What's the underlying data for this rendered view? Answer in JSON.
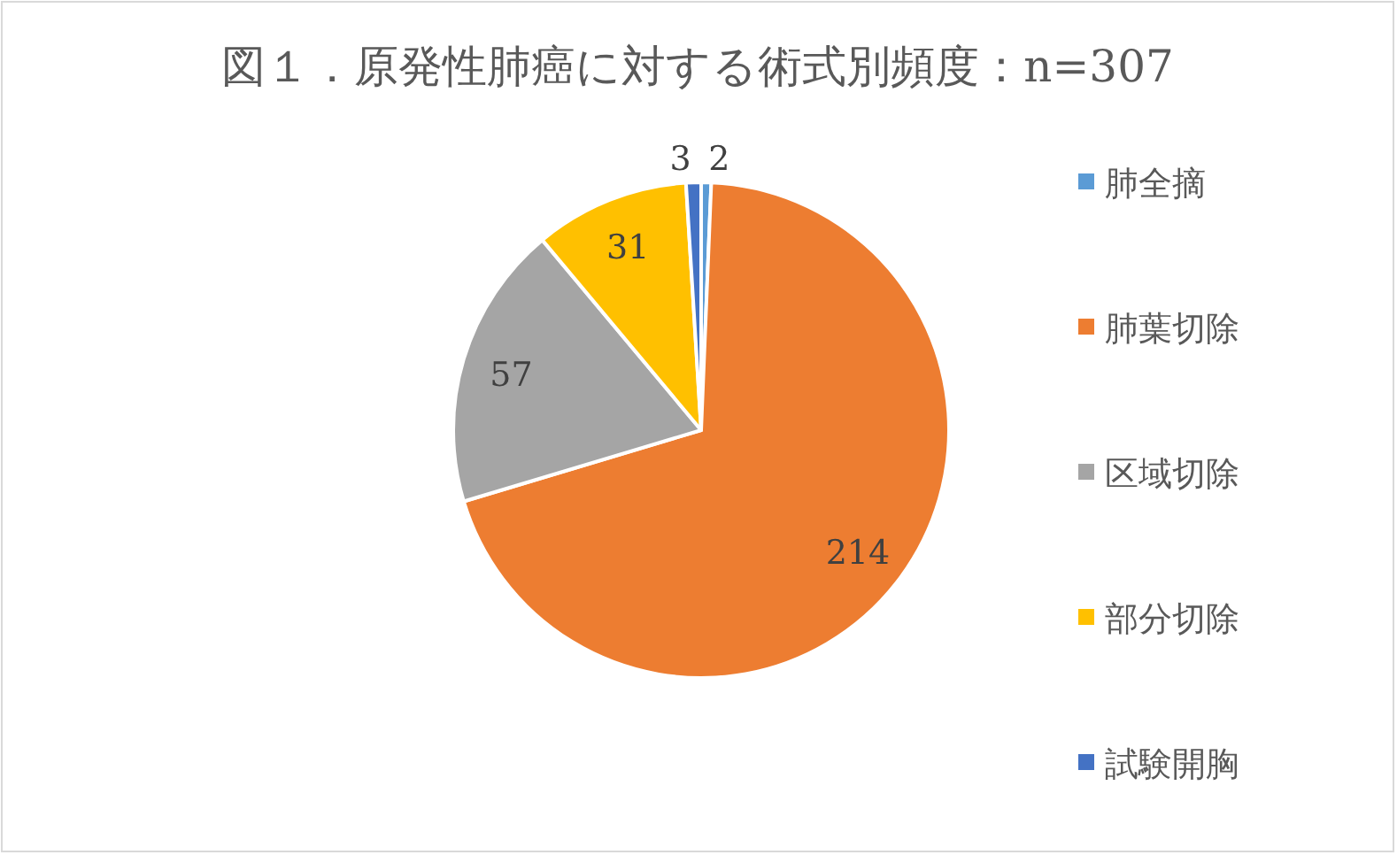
{
  "chart_data": {
    "type": "pie",
    "title": "図１．原発性肺癌に対する術式別頻度：n=307",
    "categories": [
      "肺全摘",
      "肺葉切除",
      "区域切除",
      "部分切除",
      "試験開胸"
    ],
    "values": [
      2,
      214,
      57,
      31,
      3
    ],
    "colors": [
      "#5b9bd5",
      "#ed7d31",
      "#a5a5a5",
      "#ffc000",
      "#4472c4"
    ],
    "data_labels": true,
    "legend": "right"
  }
}
